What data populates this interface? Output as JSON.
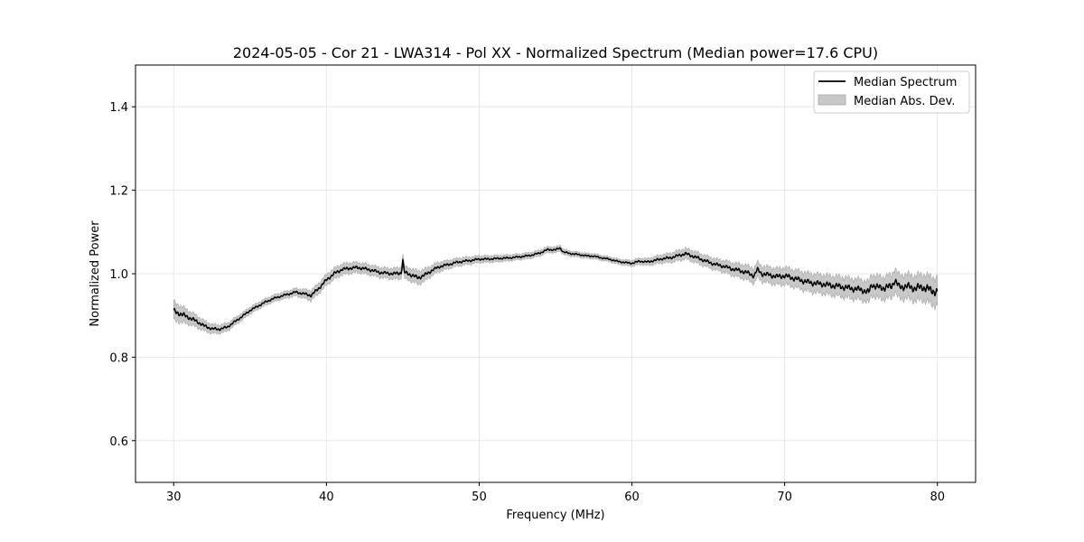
{
  "chart_data": {
    "type": "line",
    "title": "2024-05-05 - Cor 21 - LWA314 - Pol XX - Normalized Spectrum (Median power=17.6 CPU)",
    "xlabel": "Frequency (MHz)",
    "ylabel": "Normalized Power",
    "xlim": [
      27.5,
      82.5
    ],
    "ylim": [
      0.5,
      1.5
    ],
    "xticks": [
      30,
      40,
      50,
      60,
      70,
      80
    ],
    "xtick_labels": [
      "30",
      "40",
      "50",
      "60",
      "70",
      "80"
    ],
    "yticks": [
      0.6,
      0.8,
      1.0,
      1.2,
      1.4
    ],
    "ytick_labels": [
      "0.6",
      "0.8",
      "1.0",
      "1.2",
      "1.4"
    ],
    "grid": true,
    "legend_position": "top-right",
    "legend": [
      "Median Spectrum",
      "Median Abs. Dev."
    ],
    "series": [
      {
        "name": "Median Spectrum",
        "color": "#000000",
        "x": [
          30,
          30.5,
          31,
          31.5,
          32,
          32.5,
          33,
          33.5,
          34,
          34.5,
          35,
          35.5,
          36,
          36.5,
          37,
          37.5,
          38,
          38.5,
          39,
          39.5,
          40,
          40.5,
          41,
          41.5,
          42,
          42.5,
          43,
          43.5,
          44,
          44.5,
          44.9,
          45.0,
          45.1,
          45.5,
          46,
          46.5,
          47,
          47.5,
          48,
          48.5,
          49,
          49.5,
          50,
          50.5,
          51,
          51.5,
          52,
          52.5,
          53,
          53.5,
          54,
          54.5,
          55,
          55.3,
          55.5,
          56,
          56.5,
          57,
          57.5,
          58,
          58.5,
          59,
          59.5,
          60,
          60.5,
          61,
          61.5,
          62,
          62.5,
          63,
          63.5,
          64,
          64.5,
          65,
          65.5,
          66,
          66.5,
          67,
          67.5,
          68,
          68.2,
          68.5,
          69,
          69.5,
          70,
          70.5,
          71,
          71.5,
          72,
          72.5,
          73,
          73.5,
          74,
          74.5,
          75,
          75.5,
          75.7,
          76,
          76.5,
          77,
          77.2,
          77.5,
          78,
          78.5,
          79,
          79.5,
          80
        ],
        "values": [
          0.91,
          0.903,
          0.895,
          0.886,
          0.875,
          0.868,
          0.867,
          0.872,
          0.885,
          0.898,
          0.912,
          0.922,
          0.932,
          0.94,
          0.946,
          0.951,
          0.956,
          0.952,
          0.948,
          0.965,
          0.985,
          1.0,
          1.01,
          1.013,
          1.015,
          1.012,
          1.008,
          1.003,
          1.001,
          1.0,
          1.002,
          1.033,
          1.003,
          0.998,
          0.99,
          0.998,
          1.01,
          1.018,
          1.022,
          1.027,
          1.03,
          1.032,
          1.035,
          1.035,
          1.036,
          1.037,
          1.038,
          1.04,
          1.042,
          1.045,
          1.05,
          1.058,
          1.057,
          1.062,
          1.052,
          1.048,
          1.046,
          1.043,
          1.042,
          1.038,
          1.035,
          1.03,
          1.027,
          1.025,
          1.03,
          1.028,
          1.032,
          1.036,
          1.038,
          1.043,
          1.048,
          1.042,
          1.035,
          1.028,
          1.022,
          1.018,
          1.012,
          1.008,
          1.003,
          0.995,
          1.01,
          1.0,
          0.997,
          0.993,
          0.995,
          0.99,
          0.985,
          0.98,
          0.977,
          0.975,
          0.972,
          0.97,
          0.967,
          0.964,
          0.962,
          0.955,
          0.975,
          0.968,
          0.966,
          0.97,
          0.985,
          0.968,
          0.97,
          0.965,
          0.968,
          0.962,
          0.955
        ]
      },
      {
        "name": "Median Abs. Dev.",
        "color": "#c8c8c8",
        "x": [
          30,
          31,
          32,
          33,
          34,
          35,
          36,
          37,
          38,
          39,
          40,
          41,
          42,
          43,
          44,
          45,
          46,
          47,
          48,
          49,
          50,
          51,
          52,
          53,
          54,
          55,
          56,
          57,
          58,
          59,
          60,
          61,
          62,
          63,
          64,
          65,
          66,
          67,
          68,
          69,
          70,
          71,
          72,
          73,
          74,
          75,
          76,
          77,
          78,
          79,
          80
        ],
        "values": [
          0.022,
          0.016,
          0.012,
          0.01,
          0.009,
          0.008,
          0.008,
          0.008,
          0.009,
          0.012,
          0.013,
          0.013,
          0.012,
          0.012,
          0.012,
          0.014,
          0.016,
          0.012,
          0.01,
          0.009,
          0.008,
          0.008,
          0.007,
          0.007,
          0.007,
          0.007,
          0.006,
          0.006,
          0.006,
          0.006,
          0.007,
          0.008,
          0.01,
          0.012,
          0.013,
          0.013,
          0.014,
          0.016,
          0.018,
          0.019,
          0.02,
          0.021,
          0.022,
          0.023,
          0.024,
          0.024,
          0.026,
          0.028,
          0.029,
          0.031,
          0.034
        ]
      }
    ]
  }
}
